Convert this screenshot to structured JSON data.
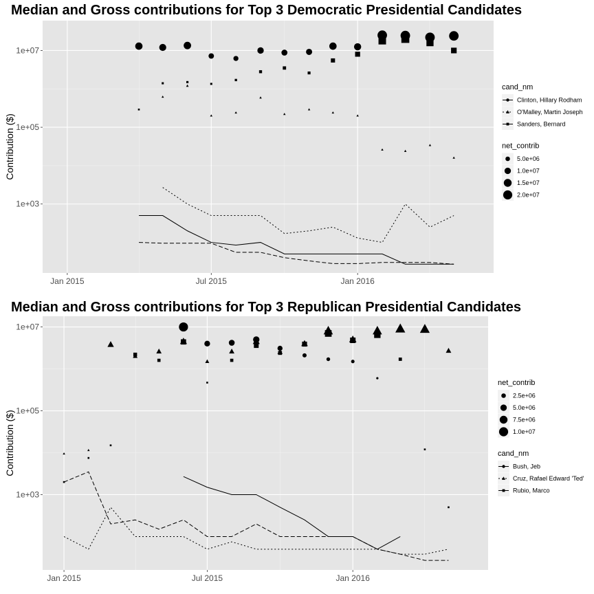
{
  "chart_data": [
    {
      "type": "line",
      "title": "Median and Gross contributions for Top 3 Democratic Presidential Candidates",
      "xlabel": "",
      "ylabel": "Contribution ($)",
      "y_scale": "log10",
      "ylim": [
        16,
        60000000
      ],
      "xlim": [
        "2014-12-01",
        "2016-06-20"
      ],
      "x_ticks": [
        {
          "date": "2015-01-01",
          "label": "Jan 2015"
        },
        {
          "date": "2015-07-01",
          "label": "Jul 2015"
        },
        {
          "date": "2016-01-01",
          "label": "Jan 2016"
        }
      ],
      "y_ticks": [
        {
          "value": 1000,
          "label": "1e+03"
        },
        {
          "value": 100000,
          "label": "1e+05"
        },
        {
          "value": 10000000,
          "label": "1e+07"
        }
      ],
      "grid": true,
      "legend_placement": "right",
      "legends": [
        {
          "title": "cand_nm",
          "kind": "candidate",
          "entries": [
            {
              "label": "Clinton, Hillary Rodham",
              "shape": "circle",
              "dash": "solid"
            },
            {
              "label": "O'Malley, Martin Joseph",
              "shape": "triangle",
              "dash": "dotted"
            },
            {
              "label": "Sanders, Bernard",
              "shape": "square",
              "dash": "dashed"
            }
          ]
        },
        {
          "title": "net_contrib",
          "kind": "size",
          "entries": [
            {
              "label": "5.0e+06",
              "value": 5000000
            },
            {
              "label": "1.0e+07",
              "value": 10000000
            },
            {
              "label": "1.5e+07",
              "value": 15000000
            },
            {
              "label": "2.0e+07",
              "value": 20000000
            }
          ]
        }
      ],
      "size_range": [
        5000000,
        20000000
      ],
      "series": [
        {
          "name": "Clinton, Hillary Rodham",
          "shape": "circle",
          "dash": "solid",
          "median_x": [
            "2015-04-01",
            "2015-05-01",
            "2015-06-01",
            "2015-07-01",
            "2015-08-01",
            "2015-09-01",
            "2015-10-01",
            "2015-11-01",
            "2015-12-01",
            "2016-01-01",
            "2016-02-01",
            "2016-03-01",
            "2016-04-01",
            "2016-05-01"
          ],
          "median": [
            500,
            500,
            200,
            100,
            85,
            100,
            50,
            50,
            50,
            50,
            50,
            27,
            27,
            27
          ],
          "gross_x": [
            "2015-04-01",
            "2015-05-01",
            "2015-06-01",
            "2015-07-01",
            "2015-08-01",
            "2015-09-01",
            "2015-10-01",
            "2015-11-01",
            "2015-12-01",
            "2016-01-01",
            "2016-02-01",
            "2016-03-01",
            "2016-04-01",
            "2016-05-01"
          ],
          "gross": [
            13000000,
            12000000,
            13500000,
            7200000,
            6200000,
            10000000,
            8800000,
            9200000,
            13000000,
            12500000,
            25000000,
            24500000,
            22000000,
            24000000
          ]
        },
        {
          "name": "O'Malley, Martin Joseph",
          "shape": "triangle",
          "dash": "dotted",
          "median_x": [
            "2015-05-01",
            "2015-06-01",
            "2015-07-01",
            "2015-08-01",
            "2015-09-01",
            "2015-10-01",
            "2015-11-01",
            "2015-12-01",
            "2016-01-01",
            "2016-02-01",
            "2016-03-01",
            "2016-04-01",
            "2016-05-01"
          ],
          "median": [
            2700,
            1000,
            500,
            500,
            500,
            170,
            200,
            250,
            130,
            100,
            1000,
            250,
            500
          ],
          "gross_x": [
            "2015-05-01",
            "2015-06-01",
            "2015-07-01",
            "2015-08-01",
            "2015-09-01",
            "2015-10-01",
            "2015-11-01",
            "2015-12-01",
            "2016-01-01",
            "2016-02-01",
            "2016-03-01",
            "2016-04-01",
            "2016-05-01"
          ],
          "gross": [
            620000,
            1200000,
            200000,
            240000,
            590000,
            220000,
            290000,
            240000,
            200000,
            26000,
            24000,
            34000,
            16000
          ]
        },
        {
          "name": "Sanders, Bernard",
          "shape": "square",
          "dash": "dashed",
          "median_x": [
            "2015-04-01",
            "2015-05-01",
            "2015-06-01",
            "2015-07-01",
            "2015-08-01",
            "2015-09-01",
            "2015-10-01",
            "2015-11-01",
            "2015-12-01",
            "2016-01-01",
            "2016-02-01",
            "2016-03-01",
            "2016-04-01",
            "2016-05-01"
          ],
          "median": [
            100,
            95,
            95,
            95,
            55,
            55,
            40,
            33,
            28,
            28,
            30,
            30,
            30,
            27
          ],
          "gross_x": [
            "2015-04-01",
            "2015-05-01",
            "2015-06-01",
            "2015-07-01",
            "2015-08-01",
            "2015-09-01",
            "2015-10-01",
            "2015-11-01",
            "2015-12-01",
            "2016-01-01",
            "2016-02-01",
            "2016-03-01",
            "2016-04-01",
            "2016-05-01"
          ],
          "gross": [
            290000,
            1400000,
            1500000,
            1350000,
            1700000,
            2800000,
            3500000,
            2600000,
            5500000,
            8000000,
            18000000,
            20000000,
            16000000,
            10000000
          ]
        }
      ]
    },
    {
      "type": "line",
      "title": "Median and Gross contributions for Top 3 Republican Presidential Candidates",
      "xlabel": "",
      "ylabel": "Contribution ($)",
      "y_scale": "log10",
      "ylim": [
        16,
        18000000
      ],
      "xlim": [
        "2014-12-05",
        "2016-06-20"
      ],
      "x_ticks": [
        {
          "date": "2015-01-01",
          "label": "Jan 2015"
        },
        {
          "date": "2015-07-01",
          "label": "Jul 2015"
        },
        {
          "date": "2016-01-01",
          "label": "Jan 2016"
        }
      ],
      "y_ticks": [
        {
          "value": 1000,
          "label": "1e+03"
        },
        {
          "value": 100000,
          "label": "1e+05"
        },
        {
          "value": 10000000,
          "label": "1e+07"
        }
      ],
      "grid": true,
      "legend_placement": "right",
      "legends": [
        {
          "title": "net_contrib",
          "kind": "size",
          "entries": [
            {
              "label": "2.5e+06",
              "value": 2500000
            },
            {
              "label": "5.0e+06",
              "value": 5000000
            },
            {
              "label": "7.5e+06",
              "value": 7500000
            },
            {
              "label": "1.0e+07",
              "value": 10000000
            }
          ]
        },
        {
          "title": "cand_nm",
          "kind": "candidate",
          "entries": [
            {
              "label": "Bush, Jeb",
              "shape": "circle",
              "dash": "solid"
            },
            {
              "label": "Cruz, Rafael Edward 'Ted'",
              "shape": "triangle",
              "dash": "dotted"
            },
            {
              "label": "Rubio, Marco",
              "shape": "square",
              "dash": "dashed"
            }
          ]
        }
      ],
      "size_range": [
        2500000,
        10000000
      ],
      "series": [
        {
          "name": "Bush, Jeb",
          "shape": "circle",
          "dash": "solid",
          "median_x": [
            "2015-06-01",
            "2015-07-01",
            "2015-08-01",
            "2015-09-01",
            "2015-10-01",
            "2015-11-01",
            "2015-12-01",
            "2016-01-01",
            "2016-02-01",
            "2016-03-01"
          ],
          "median": [
            2700,
            1500,
            1000,
            1000,
            500,
            250,
            100,
            100,
            50,
            100
          ],
          "gross_x": [
            "2015-06-01",
            "2015-07-01",
            "2015-08-01",
            "2015-09-01",
            "2015-10-01",
            "2015-11-01",
            "2015-12-01",
            "2016-01-01",
            "2016-02-01"
          ],
          "gross": [
            10000000,
            4000000,
            4200000,
            5000000,
            3100000,
            2100000,
            1700000,
            1500000,
            600000
          ]
        },
        {
          "name": "Cruz, Rafael Edward 'Ted'",
          "shape": "triangle",
          "dash": "dotted",
          "median_x": [
            "2015-01-01",
            "2015-02-01",
            "2015-03-01",
            "2015-04-01",
            "2015-05-01",
            "2015-06-01",
            "2015-07-01",
            "2015-08-01",
            "2015-09-01",
            "2015-10-01",
            "2015-11-01",
            "2015-12-01",
            "2016-01-01",
            "2016-02-01",
            "2016-03-01",
            "2016-04-01",
            "2016-05-01"
          ],
          "median": [
            100,
            50,
            500,
            100,
            100,
            100,
            50,
            75,
            50,
            50,
            50,
            50,
            50,
            50,
            38,
            38,
            50
          ],
          "gross_x": [
            "2015-01-01",
            "2015-02-01",
            "2015-03-01",
            "2015-04-01",
            "2015-05-01",
            "2015-06-01",
            "2015-07-01",
            "2015-08-01",
            "2015-09-01",
            "2015-10-01",
            "2015-11-01",
            "2015-12-01",
            "2016-01-01",
            "2016-02-01",
            "2016-03-01",
            "2016-04-01",
            "2016-05-01"
          ],
          "gross": [
            9500,
            11500,
            3800000,
            2000000,
            2600000,
            4500000,
            1500000,
            2600000,
            4500000,
            2500000,
            4000000,
            8000000,
            5000000,
            8000000,
            9000000,
            8800000,
            2700000
          ]
        },
        {
          "name": "Rubio, Marco",
          "shape": "square",
          "dash": "dashed",
          "median_x": [
            "2015-01-01",
            "2015-02-01",
            "2015-03-01",
            "2015-04-01",
            "2015-05-01",
            "2015-06-01",
            "2015-07-01",
            "2015-08-01",
            "2015-09-01",
            "2015-10-01",
            "2015-11-01",
            "2015-12-01",
            "2016-01-01",
            "2016-02-01",
            "2016-03-01",
            "2016-04-01",
            "2016-05-01"
          ],
          "median": [
            2000,
            3500,
            200,
            250,
            150,
            250,
            100,
            100,
            200,
            100,
            100,
            100,
            100,
            50,
            38,
            27,
            27
          ],
          "gross_x": [
            "2015-01-01",
            "2015-02-01",
            "2015-03-01",
            "2015-04-01",
            "2015-05-01",
            "2015-06-01",
            "2015-07-01",
            "2015-08-01",
            "2015-09-01",
            "2015-10-01",
            "2015-11-01",
            "2015-12-01",
            "2016-01-01",
            "2016-02-01",
            "2016-03-01",
            "2016-04-01",
            "2016-05-01"
          ],
          "gross": [
            2000,
            7500,
            15000,
            2200000,
            1600000,
            4400000,
            470000,
            1600000,
            3600000,
            2400000,
            3900000,
            7000000,
            4800000,
            6500000,
            1700000,
            12000,
            500
          ]
        }
      ]
    }
  ]
}
